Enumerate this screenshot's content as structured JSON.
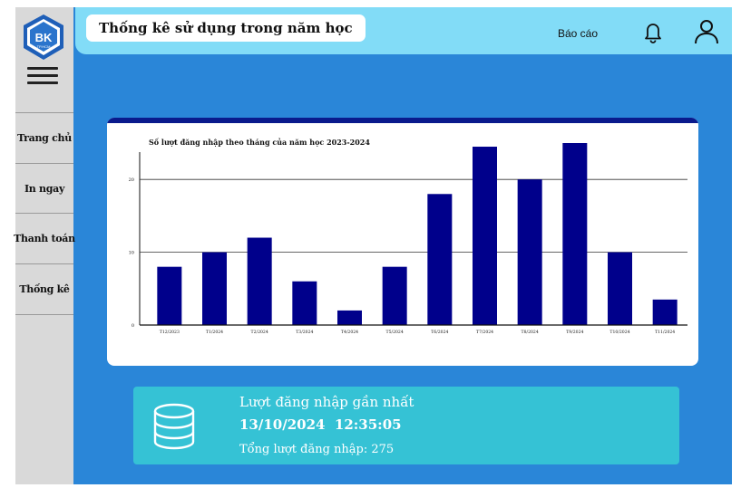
{
  "header": {
    "title": "Thống kê  sử dụng trong năm học",
    "report_label": "Báo cáo",
    "notification_icon": "bell-icon",
    "user_icon": "user-icon"
  },
  "sidebar": {
    "logo_text": "BK",
    "logo_subtext": "TP.HCM",
    "menu_icon": "hamburger-icon",
    "items": [
      {
        "label": "Trang chủ"
      },
      {
        "label": "In ngay"
      },
      {
        "label": "Thanh toán"
      },
      {
        "label": "Thống kê"
      }
    ]
  },
  "colors": {
    "background": "#2a86d8",
    "sidebar": "#d9d9d9",
    "header": "#82dcf7",
    "bar": "#00008b",
    "card_accent": "#0a1a8c",
    "info_card": "#35c2d5"
  },
  "chart_data": {
    "type": "bar",
    "title": "Số lượt đăng nhập theo tháng của năm học 2023-2024",
    "categories": [
      "T12/2023",
      "T1/2024",
      "T2/2024",
      "T3/2024",
      "T4/2024",
      "T5/2024",
      "T6/2024",
      "T7/2024",
      "T8/2024",
      "T9/2024",
      "T10/2024",
      "T11/2024"
    ],
    "values": [
      8,
      10,
      12,
      6,
      2,
      8,
      18,
      24.5,
      20,
      25,
      10,
      3.5
    ],
    "yticks": [
      0,
      10,
      20
    ],
    "ylim": [
      0,
      25
    ],
    "xlabel": "",
    "ylabel": "",
    "grid": true
  },
  "last_login": {
    "title": "Lượt đăng nhập gần nhất",
    "datetime": "13/10/2024  12:35:05",
    "total": "Tổng lượt đăng nhập: 275",
    "icon": "database-icon"
  }
}
